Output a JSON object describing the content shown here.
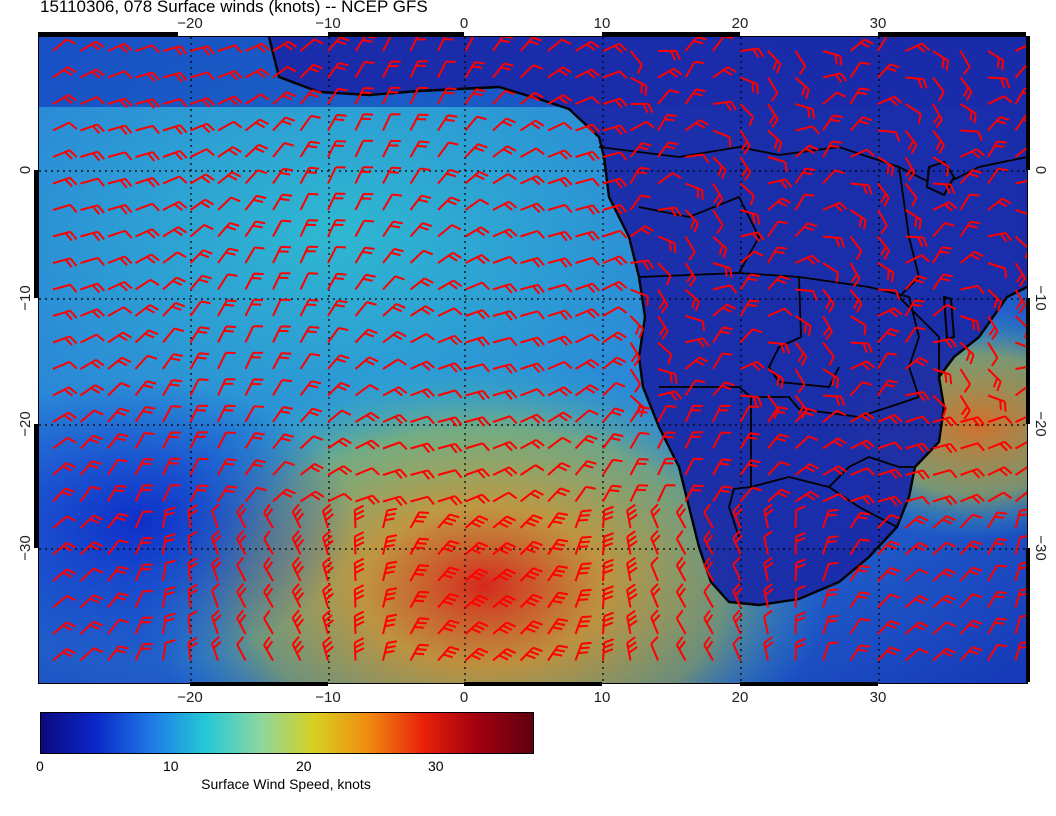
{
  "title": "15110306, 078 Surface winds (knots) -- NCEP GFS",
  "map": {
    "lon_ticks": [
      "−20",
      "−10",
      "0",
      "10",
      "20",
      "30"
    ],
    "lat_ticks_left": [
      "0",
      "−10",
      "−20",
      "−30"
    ],
    "lat_ticks_right": [
      "0",
      "−10",
      "−20",
      "−30"
    ],
    "lon_range": [
      -30,
      41
    ],
    "lat_range": [
      -39.5,
      10
    ],
    "gridlines": "dotted",
    "barb_color": "#ff0000",
    "coast_color": "#000000"
  },
  "colorbar": {
    "title": "Surface Wind Speed, knots",
    "ticks": [
      "0",
      "10",
      "20",
      "30"
    ],
    "range": [
      0,
      37
    ],
    "colors": [
      "#0a0a80",
      "#0b27c8",
      "#1e78e6",
      "#23c8d8",
      "#8ad7a0",
      "#d8d020",
      "#f08a10",
      "#e8200a",
      "#a00010",
      "#600010"
    ]
  }
}
